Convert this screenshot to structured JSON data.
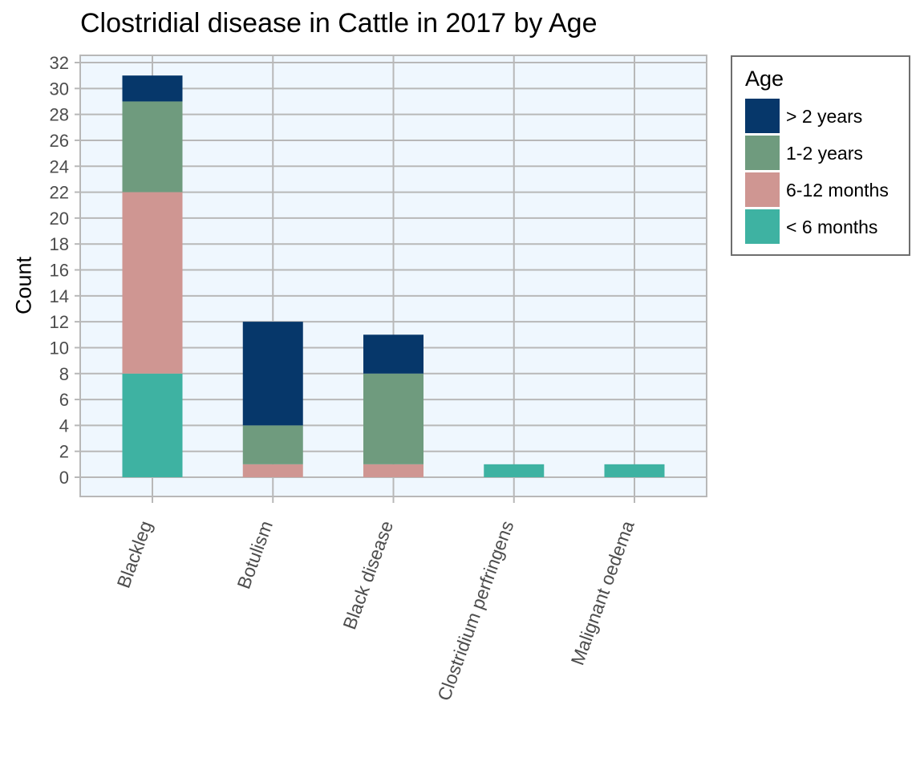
{
  "chart_data": {
    "type": "bar",
    "stacked": true,
    "title": "Clostridial disease in Cattle in 2017 by Age",
    "xlabel": "",
    "ylabel": "Count",
    "categories": [
      "Blackleg",
      "Botulism",
      "Black disease",
      "Clostridium perfringens",
      "Malignant oedema"
    ],
    "series": [
      {
        "name": "< 6 months",
        "color": "#3eb2a2",
        "values": [
          8,
          0,
          0,
          1,
          1
        ]
      },
      {
        "name": "6-12 months",
        "color": "#cf9692",
        "values": [
          14,
          1,
          1,
          0,
          0
        ]
      },
      {
        "name": "1-2 years",
        "color": "#6f9b7e",
        "values": [
          7,
          3,
          7,
          0,
          0
        ]
      },
      {
        "name": "> 2 years",
        "color": "#06376a",
        "values": [
          2,
          8,
          3,
          0,
          0
        ]
      }
    ],
    "ylim": [
      0,
      32
    ],
    "yticks": [
      0,
      2,
      4,
      6,
      8,
      10,
      12,
      14,
      16,
      18,
      20,
      22,
      24,
      26,
      28,
      30,
      32
    ],
    "grid": true,
    "legend": {
      "title": "Age",
      "position": "right",
      "order": [
        "> 2 years",
        "1-2 years",
        "6-12 months",
        "< 6 months"
      ]
    },
    "colors": {
      "panel_background": "#eff7fe",
      "gridline": "#b8b8b8",
      "tick_label": "#4d4d4d"
    }
  }
}
